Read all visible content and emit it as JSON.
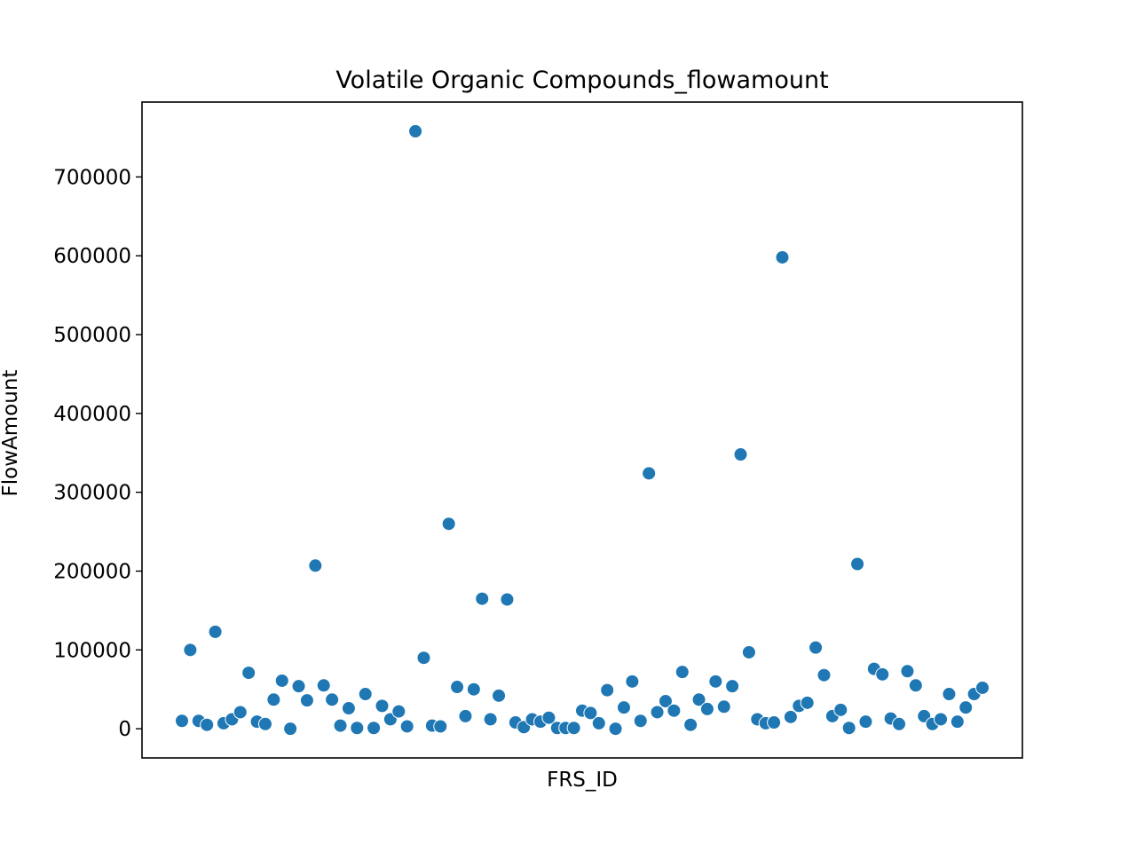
{
  "chart_data": {
    "type": "scatter",
    "title": "Volatile Organic Compounds_flowamount",
    "xlabel": "FRS_ID",
    "ylabel": "FlowAmount",
    "x_tick_labels_shown": false,
    "ylim": [
      -37000,
      795000
    ],
    "yticks": [
      0,
      100000,
      200000,
      300000,
      400000,
      500000,
      600000,
      700000
    ],
    "ytick_labels": [
      "0",
      "100000",
      "200000",
      "300000",
      "400000",
      "500000",
      "600000",
      "700000"
    ],
    "grid": false,
    "legend": false,
    "marker_color": "#1f77b4",
    "marker_edge_color": "#ffffff",
    "values": [
      10000,
      100000,
      10000,
      5000,
      123000,
      7000,
      12000,
      21000,
      71000,
      9000,
      6000,
      37000,
      61000,
      0,
      54000,
      36000,
      207000,
      55000,
      37000,
      4000,
      26000,
      1000,
      44000,
      1000,
      29000,
      12000,
      22000,
      3000,
      758000,
      90000,
      4000,
      3000,
      260000,
      53000,
      16000,
      50000,
      165000,
      12000,
      42000,
      164000,
      8000,
      2000,
      12000,
      9000,
      14000,
      1000,
      1000,
      1000,
      23000,
      20000,
      7000,
      49000,
      0,
      27000,
      60000,
      10000,
      324000,
      21000,
      35000,
      23000,
      72000,
      5000,
      37000,
      25000,
      60000,
      28000,
      54000,
      348000,
      97000,
      12000,
      7000,
      8000,
      598000,
      15000,
      29000,
      33000,
      103000,
      68000,
      16000,
      24000,
      1000,
      209000,
      9000,
      76000,
      69000,
      13000,
      6000,
      73000,
      55000,
      16000,
      6000,
      12000,
      44000,
      9000,
      27000,
      44000,
      52000
    ]
  }
}
